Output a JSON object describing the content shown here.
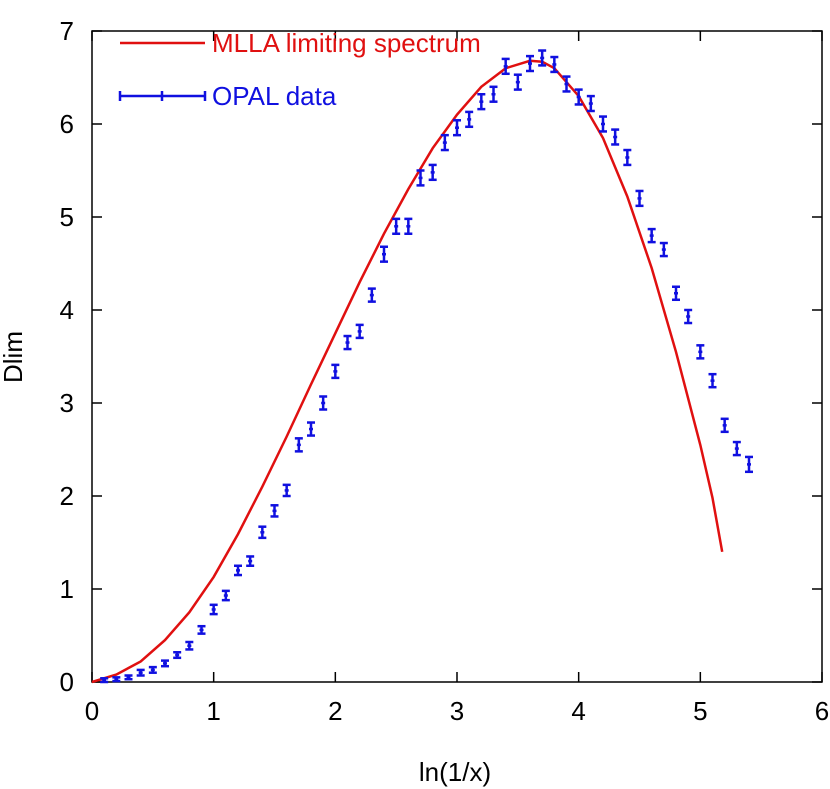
{
  "chart_data": {
    "type": "line",
    "title": "",
    "xlabel": "ln(1/x)",
    "ylabel": "Dlim",
    "xlim": [
      0,
      6
    ],
    "ylim": [
      0,
      7
    ],
    "xticks": [
      "0",
      "1",
      "2",
      "3",
      "4",
      "5",
      "6"
    ],
    "yticks": [
      "0",
      "1",
      "2",
      "3",
      "4",
      "5",
      "6",
      "7"
    ],
    "grid": false,
    "legend_position": "top-left",
    "series": [
      {
        "name": "MLLA limiting spectrum",
        "kind": "line",
        "color": "#e01010",
        "x": [
          0,
          0.2,
          0.4,
          0.6,
          0.8,
          1.0,
          1.2,
          1.4,
          1.6,
          1.8,
          2.0,
          2.2,
          2.4,
          2.6,
          2.8,
          3.0,
          3.2,
          3.4,
          3.6,
          3.7,
          3.8,
          4.0,
          4.2,
          4.4,
          4.6,
          4.8,
          5.0,
          5.1,
          5.18
        ],
        "y": [
          0,
          0.08,
          0.22,
          0.45,
          0.75,
          1.13,
          1.59,
          2.1,
          2.64,
          3.2,
          3.75,
          4.3,
          4.82,
          5.3,
          5.74,
          6.1,
          6.4,
          6.6,
          6.68,
          6.67,
          6.6,
          6.3,
          5.85,
          5.22,
          4.45,
          3.55,
          2.55,
          1.98,
          1.4
        ]
      },
      {
        "name": "OPAL data",
        "kind": "errorbar",
        "color": "#1010e0",
        "x": [
          0.1,
          0.2,
          0.3,
          0.4,
          0.5,
          0.6,
          0.7,
          0.8,
          0.9,
          1.0,
          1.1,
          1.2,
          1.3,
          1.4,
          1.5,
          1.6,
          1.7,
          1.8,
          1.9,
          2.0,
          2.1,
          2.2,
          2.3,
          2.4,
          2.5,
          2.6,
          2.7,
          2.8,
          2.9,
          3.0,
          3.1,
          3.2,
          3.3,
          3.4,
          3.5,
          3.6,
          3.7,
          3.8,
          3.9,
          4.0,
          4.1,
          4.2,
          4.3,
          4.4,
          4.5,
          4.6,
          4.7,
          4.8,
          4.9,
          5.0,
          5.1,
          5.2,
          5.3,
          5.4
        ],
        "y": [
          0.02,
          0.03,
          0.05,
          0.1,
          0.13,
          0.2,
          0.29,
          0.39,
          0.56,
          0.78,
          0.93,
          1.2,
          1.3,
          1.61,
          1.84,
          2.06,
          2.55,
          2.72,
          3.0,
          3.34,
          3.65,
          3.77,
          4.16,
          4.6,
          4.9,
          4.9,
          5.42,
          5.48,
          5.8,
          5.96,
          6.05,
          6.24,
          6.32,
          6.62,
          6.45,
          6.65,
          6.71,
          6.64,
          6.43,
          6.29,
          6.22,
          6.0,
          5.86,
          5.64,
          5.2,
          4.8,
          4.65,
          4.18,
          3.93,
          3.55,
          3.24,
          2.76,
          2.51,
          2.34
        ],
        "err": [
          0.02,
          0.02,
          0.02,
          0.03,
          0.03,
          0.03,
          0.03,
          0.04,
          0.04,
          0.05,
          0.05,
          0.05,
          0.05,
          0.06,
          0.06,
          0.06,
          0.07,
          0.07,
          0.07,
          0.07,
          0.07,
          0.07,
          0.07,
          0.08,
          0.08,
          0.08,
          0.08,
          0.08,
          0.08,
          0.08,
          0.08,
          0.08,
          0.08,
          0.08,
          0.08,
          0.08,
          0.08,
          0.08,
          0.08,
          0.08,
          0.08,
          0.08,
          0.08,
          0.08,
          0.08,
          0.07,
          0.07,
          0.07,
          0.07,
          0.07,
          0.07,
          0.07,
          0.07,
          0.08
        ]
      }
    ]
  }
}
